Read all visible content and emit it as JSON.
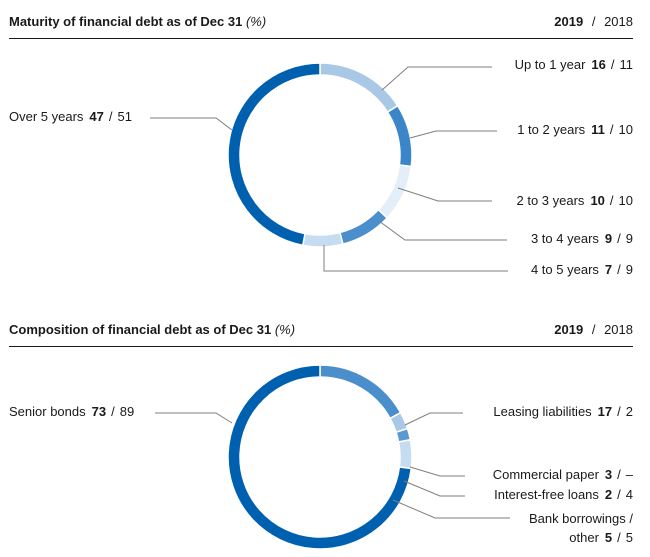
{
  "years": {
    "current": "2019",
    "separator": "/",
    "previous": "2018"
  },
  "colors": {
    "dark": "#0060b0",
    "mid": "#3a86c8",
    "light": "#a8c8e6",
    "pale": "#e3eef8",
    "leader": "#7f7f7f"
  },
  "chart_data": [
    {
      "type": "pie",
      "donut": true,
      "title": "Maturity of financial debt as of Dec 31",
      "unit": "(%)",
      "series_names": [
        "2019",
        "2018"
      ],
      "slices": [
        {
          "label": "Up to 1 year",
          "v2019": 16,
          "v2018": 11,
          "v2019_text": "16",
          "v2018_text": "11",
          "color": "#a8c8e6"
        },
        {
          "label": "1 to 2 years",
          "v2019": 11,
          "v2018": 10,
          "v2019_text": "11",
          "v2018_text": "10",
          "color": "#3a86c8"
        },
        {
          "label": "2 to 3 years",
          "v2019": 10,
          "v2018": 10,
          "v2019_text": "10",
          "v2018_text": "10",
          "color": "#e3eef8"
        },
        {
          "label": "3 to 4 years",
          "v2019": 9,
          "v2018": 9,
          "v2019_text": "9",
          "v2018_text": "9",
          "color": "#4a8fcc"
        },
        {
          "label": "4 to 5 years",
          "v2019": 7,
          "v2018": 9,
          "v2019_text": "7",
          "v2018_text": "9",
          "color": "#c6dcf0"
        },
        {
          "label": "Over 5 years",
          "v2019": 47,
          "v2018": 51,
          "v2019_text": "47",
          "v2018_text": "51",
          "color": "#0060b0"
        }
      ]
    },
    {
      "type": "pie",
      "donut": true,
      "title": "Composition of financial debt as of Dec 31",
      "unit": "(%)",
      "series_names": [
        "2019",
        "2018"
      ],
      "slices": [
        {
          "label": "Leasing liabilities",
          "v2019": 17,
          "v2018": 2,
          "v2019_text": "17",
          "v2018_text": "2",
          "color": "#4a8fcc"
        },
        {
          "label": "Commercial paper",
          "v2019": 3,
          "v2018": null,
          "v2019_text": "3",
          "v2018_text": "–",
          "color": "#a8c8e6"
        },
        {
          "label": "Interest-free loans",
          "v2019": 2,
          "v2018": 4,
          "v2019_text": "2",
          "v2018_text": "4",
          "color": "#5a9ad2"
        },
        {
          "label": "Bank borrowings / other",
          "label_line1": "Bank borrowings /",
          "label_line2": "other",
          "v2019": 5,
          "v2018": 5,
          "v2019_text": "5",
          "v2018_text": "5",
          "color": "#c6dcf0"
        },
        {
          "label": "Senior bonds",
          "v2019": 73,
          "v2018": 89,
          "v2019_text": "73",
          "v2018_text": "89",
          "color": "#0060b0"
        }
      ]
    }
  ]
}
